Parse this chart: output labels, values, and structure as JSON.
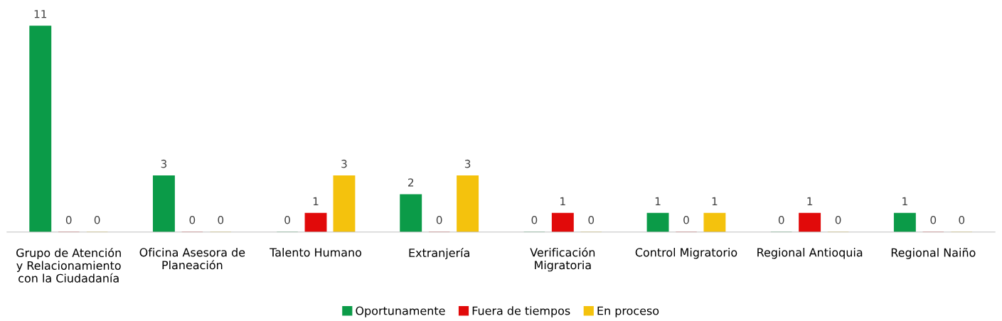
{
  "chart_data": {
    "type": "bar",
    "categories": [
      "Grupo de Atención\ny Relacionamiento\ncon la Ciudadanía",
      "Oficina Asesora de\nPlaneación",
      "Talento Humano",
      "Extranjería",
      "Verificación\nMigratoria",
      "Control Migratorio",
      "Regional Antioquia",
      "Regional Naiño"
    ],
    "series": [
      {
        "name": "Oportunamente",
        "color": "#0b9b48",
        "values": [
          11,
          3,
          0,
          2,
          0,
          1,
          0,
          1
        ]
      },
      {
        "name": "Fuera de tiempos",
        "color": "#e10a0a",
        "values": [
          0,
          0,
          1,
          0,
          1,
          0,
          1,
          0
        ]
      },
      {
        "name": "En proceso",
        "color": "#f4c20d",
        "values": [
          0,
          0,
          3,
          3,
          0,
          1,
          0,
          0
        ]
      }
    ],
    "data_labels": true,
    "grid": false,
    "legend": "bottom"
  }
}
